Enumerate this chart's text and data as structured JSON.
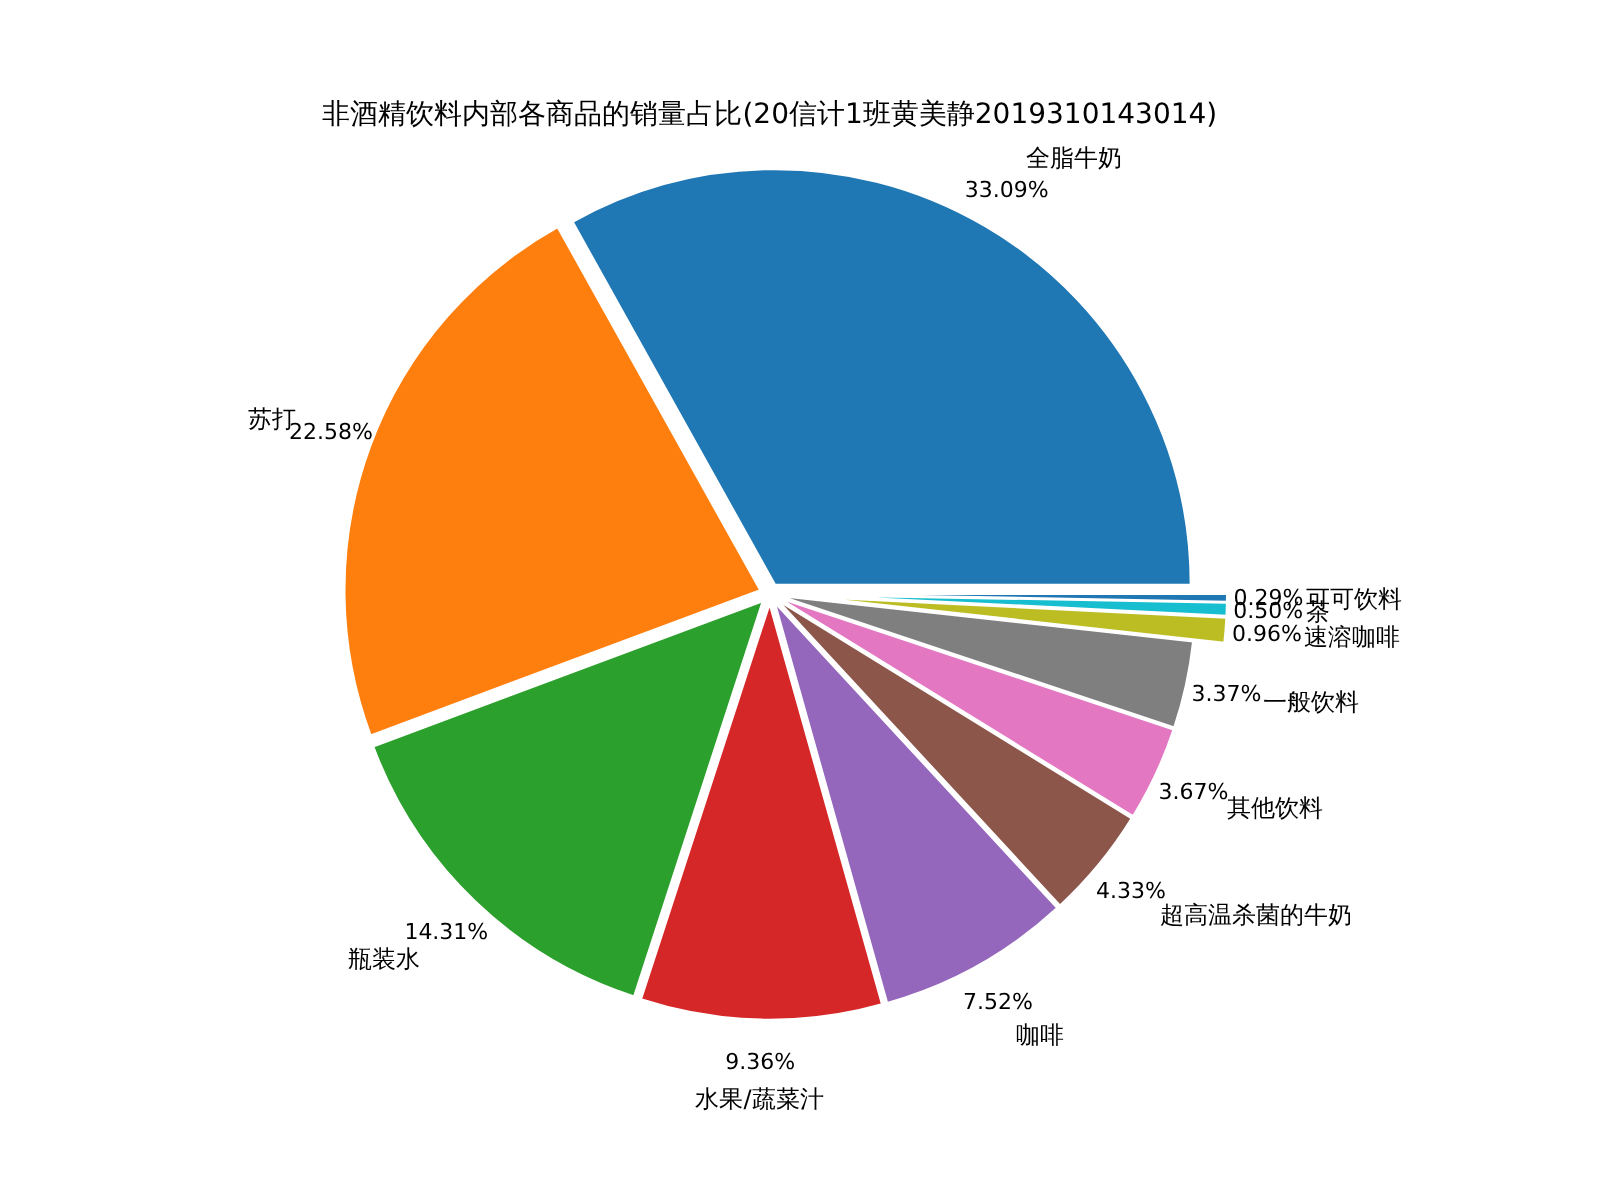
{
  "chart_data": {
    "type": "pie",
    "title": "非酒精饮料内部各商品的销量占比(20信计1班黄美静2019310143014)",
    "categories": [
      "全脂牛奶",
      "苏打",
      "瓶装水",
      "水果/蔬菜汁",
      "咖啡",
      "超高温杀菌的牛奶",
      "其他饮料",
      "一般饮料",
      "速溶咖啡",
      "茶",
      "可可饮料"
    ],
    "values": [
      33.09,
      22.58,
      14.31,
      9.36,
      7.52,
      4.33,
      3.67,
      3.37,
      0.96,
      0.5,
      0.29
    ],
    "colors": [
      "#1f77b4",
      "#ff7f0e",
      "#2ca02c",
      "#d62728",
      "#9467bd",
      "#8c564b",
      "#e377c2",
      "#7f7f7f",
      "#bcbd22",
      "#17becf",
      "#1f77b4"
    ],
    "value_labels": [
      "33.09%",
      "22.58%",
      "14.31%",
      "9.36%",
      "7.52%",
      "4.33%",
      "3.67%",
      "3.37%",
      "0.96%",
      "0.50%",
      "0.29%"
    ]
  }
}
